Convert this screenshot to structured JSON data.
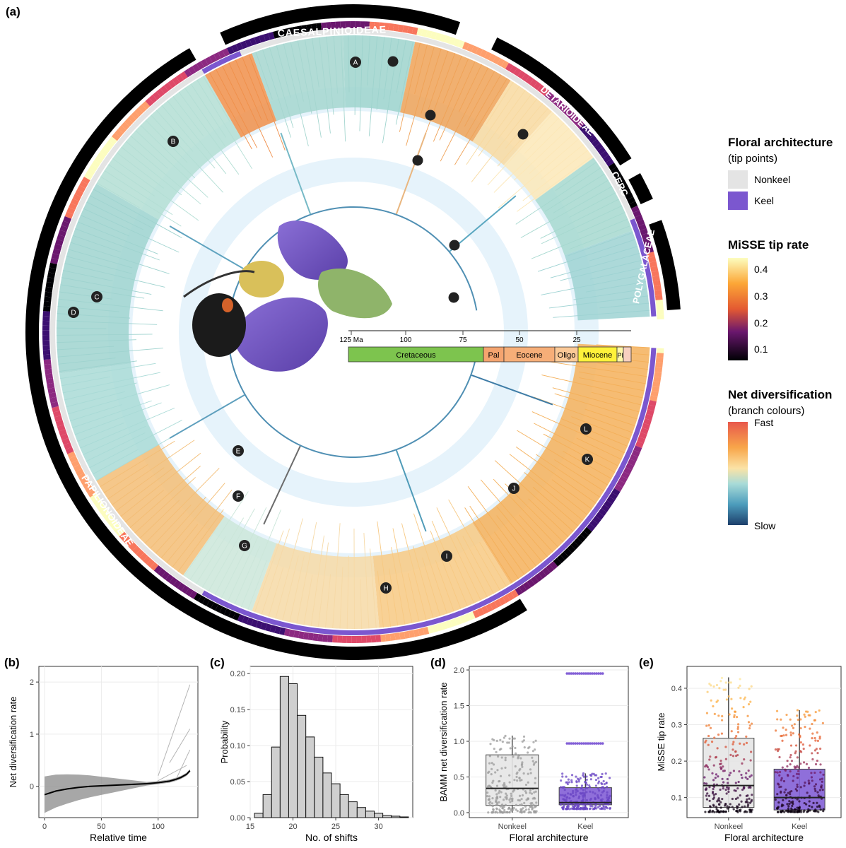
{
  "panel_a": {
    "label": "(a)",
    "clades": [
      "CAESALPINIOIDEAE",
      "DETARIOIDEAE",
      "CERC",
      "POLYGALACEAE",
      "PAPILIONOIDEAE"
    ],
    "shift_markers": [
      "A",
      "B",
      "C",
      "D",
      "E",
      "F",
      "G",
      "H",
      "I",
      "J",
      "K",
      "L"
    ],
    "time_ticks": [
      "125 Ma",
      "100",
      "75",
      "50",
      "25"
    ],
    "epochs": [
      {
        "name": "Cretaceous",
        "color": "#7dc44e"
      },
      {
        "name": "Pal",
        "color": "#f4a46f"
      },
      {
        "name": "Eocene",
        "color": "#f6ae78"
      },
      {
        "name": "Oligo",
        "color": "#fbc997"
      },
      {
        "name": "Miocene",
        "color": "#fff23a"
      },
      {
        "name": "Pl",
        "color": "#fff7a8"
      },
      {
        "name": "",
        "color": "#f8d0c0"
      }
    ]
  },
  "legend": {
    "floral_title": "Floral architecture",
    "floral_sub": "(tip points)",
    "nonkeel_label": "Nonkeel",
    "keel_label": "Keel",
    "nonkeel_color": "#e4e4e4",
    "keel_color": "#7b57cf",
    "misse_title": "MiSSE tip rate",
    "misse_ticks": [
      "0.4",
      "0.3",
      "0.2",
      "0.1"
    ],
    "net_title": "Net diversification",
    "net_sub": "(branch colours)",
    "net_fast": "Fast",
    "net_slow": "Slow"
  },
  "chart_data": [
    {
      "panel": "(b)",
      "type": "line",
      "xlabel": "Relative time",
      "ylabel": "Net diversification rate",
      "xlim": [
        -5,
        135
      ],
      "ylim": [
        -0.6,
        2.3
      ],
      "x_ticks": [
        "0",
        "50",
        "100"
      ],
      "y_ticks": [
        "0",
        "1",
        "2"
      ],
      "series": [
        {
          "name": "trend",
          "x": [
            0,
            10,
            20,
            30,
            40,
            50,
            60,
            70,
            80,
            90,
            100,
            110,
            115,
            120,
            125,
            128
          ],
          "y": [
            -0.16,
            -0.09,
            -0.05,
            -0.02,
            0.0,
            0.01,
            0.02,
            0.03,
            0.04,
            0.05,
            0.07,
            0.1,
            0.13,
            0.17,
            0.23,
            0.3
          ]
        }
      ]
    },
    {
      "panel": "(c)",
      "type": "bar",
      "xlabel": "No. of shifts",
      "ylabel": "Probability",
      "xlim": [
        15,
        34
      ],
      "ylim": [
        0,
        0.21
      ],
      "x_ticks": [
        "15",
        "20",
        "25",
        "30"
      ],
      "y_ticks": [
        "0.00",
        "0.05",
        "0.10",
        "0.15",
        "0.20"
      ],
      "categories": [
        16,
        17,
        18,
        19,
        20,
        21,
        22,
        23,
        24,
        25,
        26,
        27,
        28,
        29,
        30,
        31,
        32,
        33
      ],
      "values": [
        0.006,
        0.032,
        0.098,
        0.196,
        0.186,
        0.142,
        0.112,
        0.084,
        0.062,
        0.047,
        0.032,
        0.022,
        0.014,
        0.009,
        0.006,
        0.003,
        0.002,
        0.001
      ]
    },
    {
      "panel": "(d)",
      "type": "box",
      "xlabel": "Floral architecture",
      "ylabel": "BAMM net diversification rate",
      "ylim": [
        -0.07,
        2.05
      ],
      "y_ticks": [
        "0.0",
        "0.5",
        "1.0",
        "1.5",
        "2.0"
      ],
      "categories": [
        "Nonkeel",
        "Keel"
      ],
      "boxes": [
        {
          "name": "Nonkeel",
          "min": 0.0,
          "q1": 0.1,
          "median": 0.34,
          "q3": 0.81,
          "max": 1.08
        },
        {
          "name": "Keel",
          "min": 0.05,
          "q1": 0.11,
          "median": 0.14,
          "q3": 0.35,
          "max": 0.55,
          "outliers": [
            0.97,
            1.95
          ]
        }
      ]
    },
    {
      "panel": "(e)",
      "type": "box",
      "xlabel": "Floral architecture",
      "ylabel": "MiSSE tip rate",
      "ylim": [
        0.045,
        0.46
      ],
      "y_ticks": [
        "0.1",
        "0.2",
        "0.3",
        "0.4"
      ],
      "categories": [
        "Nonkeel",
        "Keel"
      ],
      "boxes": [
        {
          "name": "Nonkeel",
          "min": 0.06,
          "q1": 0.073,
          "median": 0.133,
          "q3": 0.263,
          "max": 0.43
        },
        {
          "name": "Keel",
          "min": 0.06,
          "q1": 0.066,
          "median": 0.1,
          "q3": 0.178,
          "max": 0.34
        }
      ]
    }
  ],
  "panel_labels": {
    "b": "(b)",
    "c": "(c)",
    "d": "(d)",
    "e": "(e)"
  }
}
